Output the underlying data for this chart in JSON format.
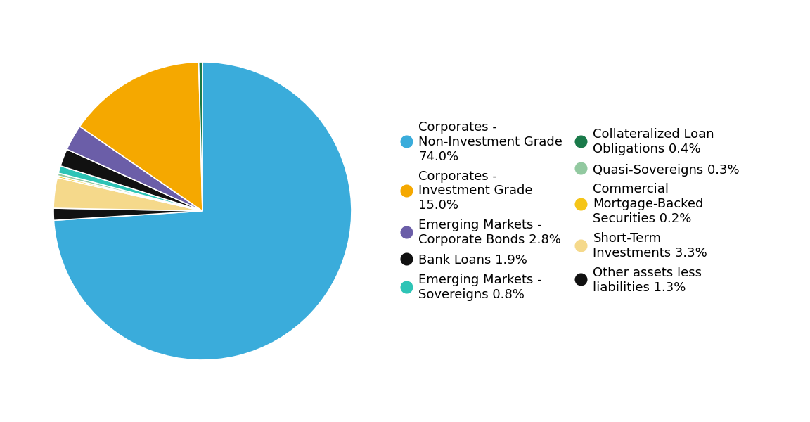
{
  "pie_slices": [
    {
      "label": "Corporates -\nNon-Investment Grade\n74.0%",
      "value": 74.0,
      "color": "#3AACDB"
    },
    {
      "label": "Other assets less\nliabilities 1.3%",
      "value": 1.3,
      "color": "#111111"
    },
    {
      "label": "Short-Term\nInvestments 3.3%",
      "value": 3.3,
      "color": "#F5D98B"
    },
    {
      "label": "Commercial\nMortgage-Backed\nSecurities 0.2%",
      "value": 0.2,
      "color": "#F5C518"
    },
    {
      "label": "Quasi-Sovereigns 0.3%",
      "value": 0.3,
      "color": "#92C9A0"
    },
    {
      "label": "Emerging Markets -\nSovereigns 0.8%",
      "value": 0.8,
      "color": "#2EC4B6"
    },
    {
      "label": "Bank Loans 1.9%",
      "value": 1.9,
      "color": "#111111"
    },
    {
      "label": "Emerging Markets -\nCorporate Bonds 2.8%",
      "value": 2.8,
      "color": "#6B5EA8"
    },
    {
      "label": "Corporates -\nInvestment Grade\n15.0%",
      "value": 15.0,
      "color": "#F5A800"
    },
    {
      "label": "Collateralized Loan\nObligations 0.4%",
      "value": 0.4,
      "color": "#1A7A4A"
    }
  ],
  "legend_items": [
    {
      "label": "Corporates -\nNon-Investment Grade\n74.0%",
      "color": "#3AACDB"
    },
    {
      "label": "Corporates -\nInvestment Grade\n15.0%",
      "color": "#F5A800"
    },
    {
      "label": "Emerging Markets -\nCorporate Bonds 2.8%",
      "color": "#6B5EA8"
    },
    {
      "label": "Bank Loans 1.9%",
      "color": "#111111"
    },
    {
      "label": "Emerging Markets -\nSovereigns 0.8%",
      "color": "#2EC4B6"
    },
    {
      "label": "Collateralized Loan\nObligations 0.4%",
      "color": "#1A7A4A"
    },
    {
      "label": "Quasi-Sovereigns 0.3%",
      "color": "#92C9A0"
    },
    {
      "label": "Commercial\nMortgage-Backed\nSecurities 0.2%",
      "color": "#F5C518"
    },
    {
      "label": "Short-Term\nInvestments 3.3%",
      "color": "#F5D98B"
    },
    {
      "label": "Other assets less\nliabilities 1.3%",
      "color": "#111111"
    }
  ],
  "background_color": "#FFFFFF",
  "legend_font_size": 13,
  "figsize": [
    11.52,
    6.0
  ],
  "dpi": 100
}
